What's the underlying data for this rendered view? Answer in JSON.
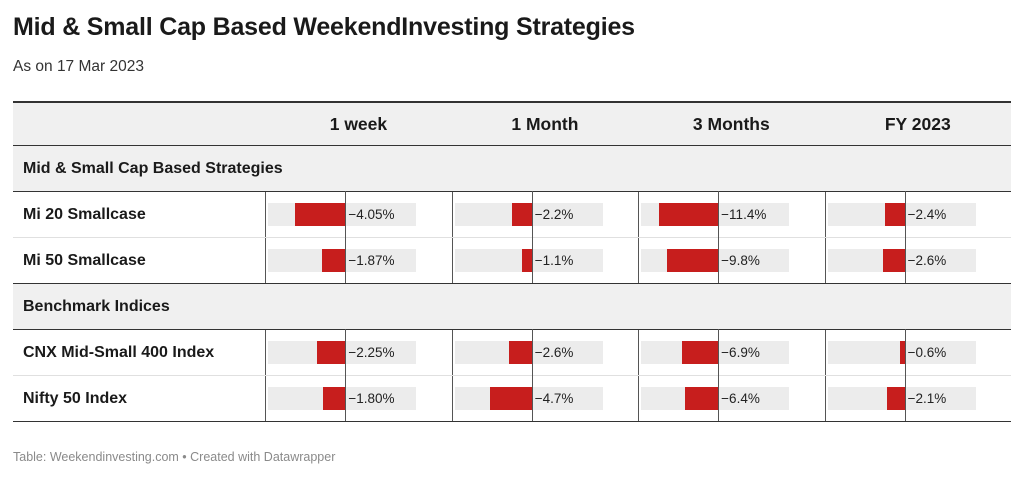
{
  "title": "Mid & Small Cap Based WeekendInvesting Strategies",
  "subtitle": "As on 17 Mar 2023",
  "footer": "Table: Weekendinvesting.com • Created with Datawrapper",
  "chart_data": {
    "type": "table",
    "columns": [
      "1 week",
      "1 Month",
      "3 Months",
      "FY 2023"
    ],
    "groups": [
      {
        "name": "Mid & Small Cap Based Strategies",
        "rows": [
          {
            "label": "Mi 20 Smallcase",
            "values": [
              -4.05,
              -2.2,
              -11.4,
              -2.4
            ],
            "display": [
              "−4.05%",
              "−2.2%",
              "−11.4%",
              "−2.4%"
            ]
          },
          {
            "label": "Mi 50 Smallcase",
            "values": [
              -1.87,
              -1.1,
              -9.8,
              -2.6
            ],
            "display": [
              "−1.87%",
              "−1.1%",
              "−9.8%",
              "−2.6%"
            ]
          }
        ]
      },
      {
        "name": "Benchmark Indices",
        "rows": [
          {
            "label": "CNX Mid-Small 400 Index",
            "values": [
              -2.25,
              -2.6,
              -6.9,
              -0.6
            ],
            "display": [
              "−2.25%",
              "−2.6%",
              "−6.9%",
              "−0.6%"
            ]
          },
          {
            "label": "Nifty 50 Index",
            "values": [
              -1.8,
              -4.7,
              -6.4,
              -2.1
            ],
            "display": [
              "−1.80%",
              "−4.7%",
              "−6.4%",
              "−2.1%"
            ]
          }
        ]
      }
    ],
    "column_max_abs": [
      6,
      8.5,
      14.5,
      9
    ],
    "bar_color": "#c71e1d",
    "track_color": "#ececec"
  }
}
